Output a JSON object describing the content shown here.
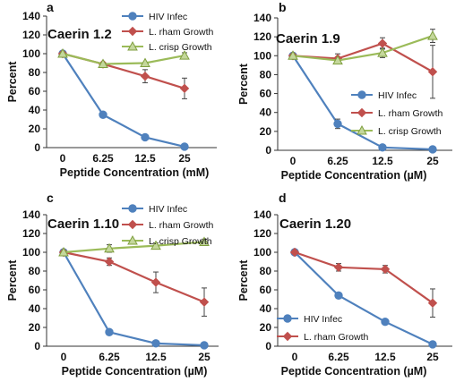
{
  "chart_data": [
    {
      "type": "line",
      "panel_letter": "a",
      "title": "Caerin 1.2",
      "xlabel": "Peptide Concentration (mM)",
      "ylabel": "Percent",
      "categories": [
        "0",
        "6.25",
        "12.5",
        "25"
      ],
      "ylim": [
        0,
        140
      ],
      "yticks": [
        "0",
        "20",
        "40",
        "60",
        "80",
        "100",
        "120",
        "140"
      ],
      "legend_position": "top-right",
      "series": [
        {
          "name": "HIV Infec",
          "values": [
            100,
            35,
            11,
            1
          ],
          "errors": [
            0,
            0,
            0,
            0
          ],
          "color": "#4F81BD",
          "marker": "circle"
        },
        {
          "name": "L. rham Growth",
          "values": [
            100,
            89,
            76,
            63
          ],
          "errors": [
            0,
            0,
            7,
            11
          ],
          "color": "#C0504D",
          "marker": "diamond"
        },
        {
          "name": "L. crisp Growth",
          "values": [
            100,
            89,
            90,
            98
          ],
          "errors": [
            0,
            0,
            0,
            3
          ],
          "color": "#9BBB59",
          "marker": "triangle"
        }
      ]
    },
    {
      "type": "line",
      "panel_letter": "b",
      "title": "Caerin 1.9",
      "xlabel": "Peptide Concentration (µM)",
      "ylabel": "Percent",
      "categories": [
        "0",
        "6.25",
        "12.5",
        "25"
      ],
      "ylim": [
        0,
        140
      ],
      "yticks": [
        "0",
        "20",
        "40",
        "60",
        "80",
        "100",
        "120",
        "140"
      ],
      "legend_position": "bottom-right",
      "series": [
        {
          "name": "HIV Infec",
          "values": [
            100,
            28,
            3,
            1
          ],
          "errors": [
            0,
            5,
            0,
            0
          ],
          "color": "#4F81BD",
          "marker": "circle"
        },
        {
          "name": "L. rham Growth",
          "values": [
            100,
            97,
            113,
            83
          ],
          "errors": [
            0,
            5,
            6,
            28
          ],
          "color": "#C0504D",
          "marker": "diamond"
        },
        {
          "name": "L. crisp Growth",
          "values": [
            100,
            95,
            103,
            121
          ],
          "errors": [
            0,
            0,
            5,
            7
          ],
          "color": "#9BBB59",
          "marker": "triangle"
        }
      ]
    },
    {
      "type": "line",
      "panel_letter": "c",
      "title": "Caerin 1.10",
      "xlabel": "Peptide Concentration (µM)",
      "ylabel": "Percent",
      "categories": [
        "0",
        "6.25",
        "12.5",
        "25"
      ],
      "ylim": [
        0,
        140
      ],
      "yticks": [
        "0",
        "20",
        "40",
        "60",
        "80",
        "100",
        "120",
        "140"
      ],
      "legend_position": "top-right",
      "series": [
        {
          "name": "HIV Infec",
          "values": [
            100,
            15,
            3,
            1
          ],
          "errors": [
            0,
            0,
            0,
            0
          ],
          "color": "#4F81BD",
          "marker": "circle"
        },
        {
          "name": "L. rham Growth",
          "values": [
            100,
            90,
            68,
            47
          ],
          "errors": [
            0,
            4,
            11,
            15
          ],
          "color": "#C0504D",
          "marker": "diamond"
        },
        {
          "name": "L. crisp Growth",
          "values": [
            100,
            104,
            107,
            111
          ],
          "errors": [
            0,
            4,
            3,
            3
          ],
          "color": "#9BBB59",
          "marker": "triangle"
        }
      ]
    },
    {
      "type": "line",
      "panel_letter": "d",
      "title": "Caerin 1.20",
      "xlabel": "Peptide Concentration (µM)",
      "ylabel": "Percent",
      "categories": [
        "0",
        "6.25",
        "12.5",
        "25"
      ],
      "ylim": [
        0,
        140
      ],
      "yticks": [
        "0",
        "20",
        "40",
        "60",
        "80",
        "100",
        "120",
        "140"
      ],
      "legend_position": "bottom-left",
      "series": [
        {
          "name": "HIV Infec",
          "values": [
            100,
            54,
            26,
            2
          ],
          "errors": [
            0,
            0,
            0,
            0
          ],
          "color": "#4F81BD",
          "marker": "circle"
        },
        {
          "name": "L. rham Growth",
          "values": [
            100,
            84,
            82,
            46
          ],
          "errors": [
            0,
            4,
            4,
            15
          ],
          "color": "#C0504D",
          "marker": "diamond"
        }
      ]
    }
  ]
}
